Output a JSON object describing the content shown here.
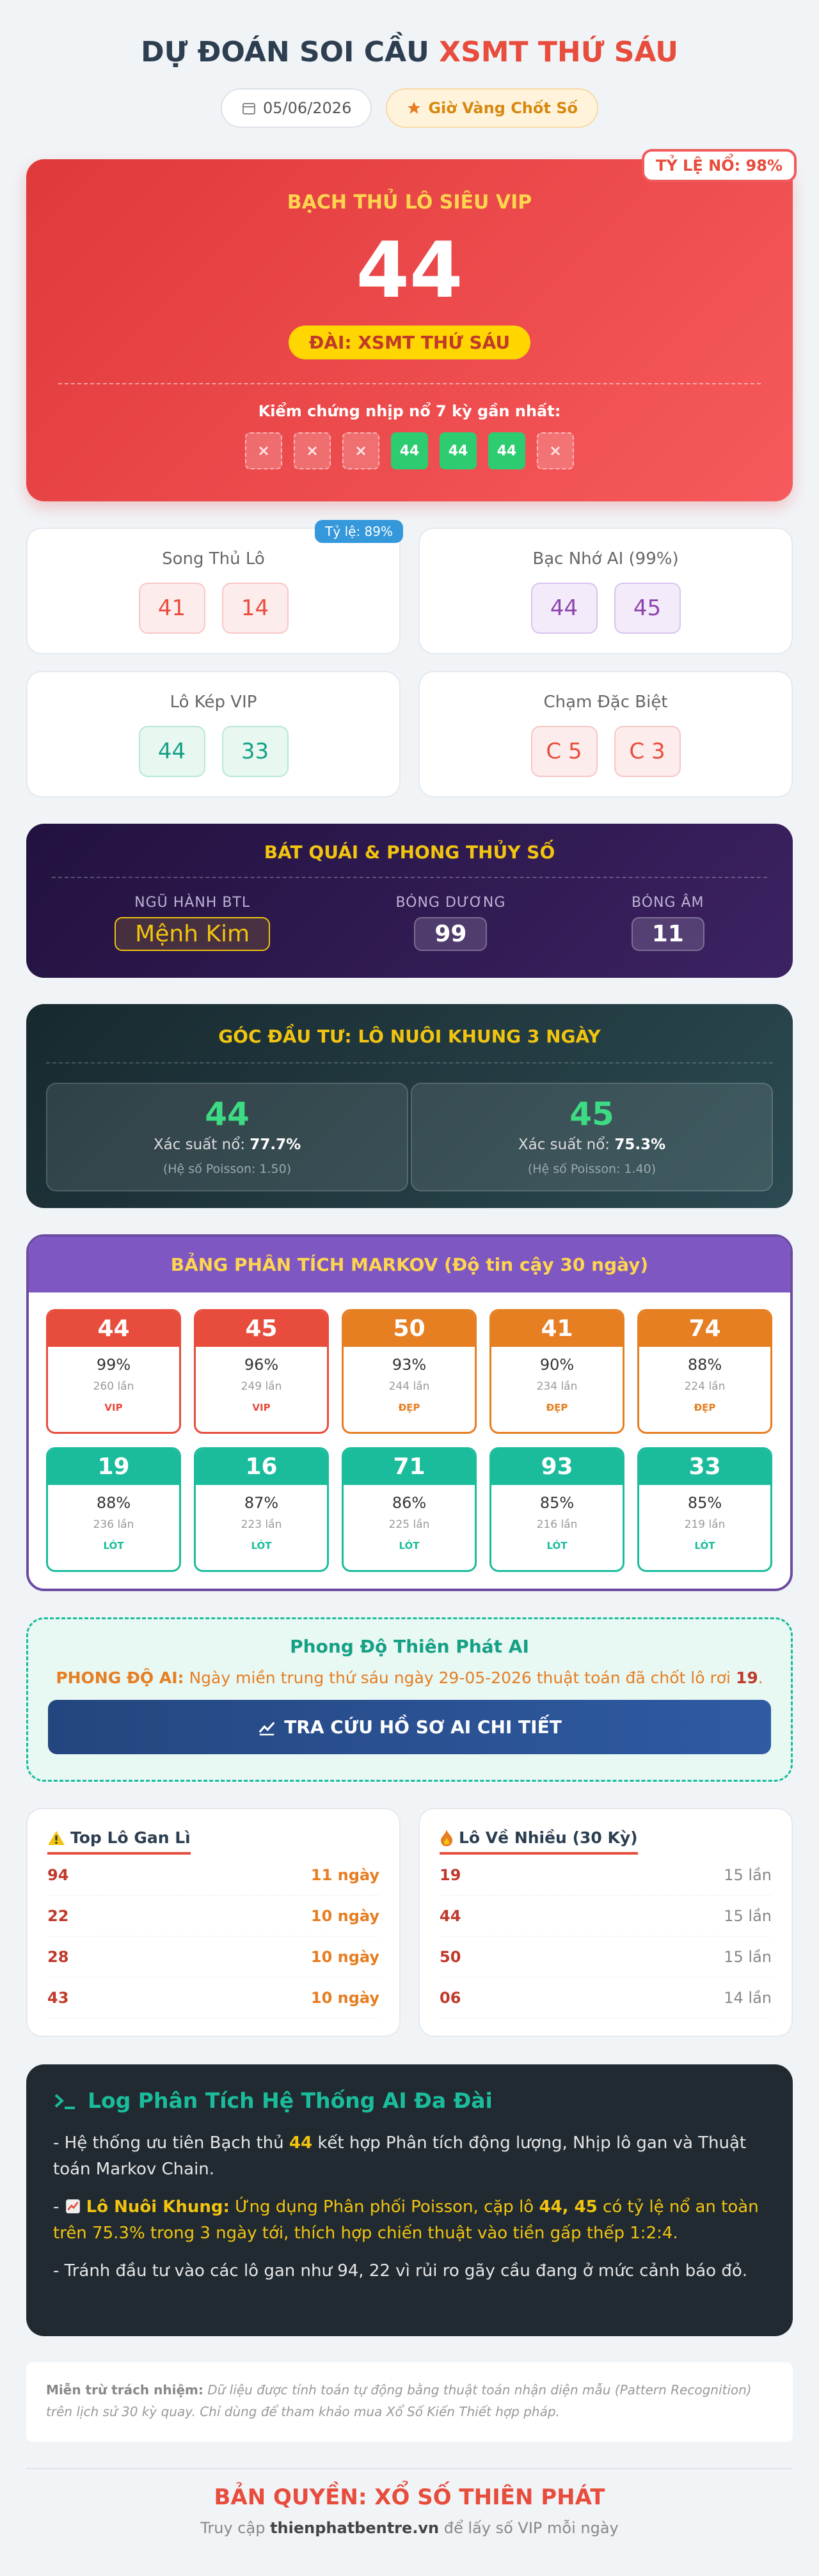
{
  "header": {
    "title_part1": "DỰ ĐOÁN SOI CẦU",
    "title_part2": "XSMT THỨ SÁU",
    "date": "05/06/2026",
    "badge": "Giờ Vàng Chốt Số"
  },
  "main_card": {
    "ribbon": "TỶ LỆ NỔ: 98%",
    "label": "BẠCH THỦ LÔ SIÊU VIP",
    "number": "44",
    "station": "ĐÀI: XSMT THỨ SÁU",
    "history_title": "Kiểm chứng nhịp nổ 7 kỳ gần nhất:",
    "history": [
      null,
      null,
      null,
      "44",
      "44",
      "44",
      null
    ]
  },
  "cards": [
    {
      "title": "Song Thủ Lô",
      "badge": "Tỷ lệ: 89%",
      "numbers": [
        "41",
        "14"
      ]
    },
    {
      "title": "Bạc Nhớ AI (99%)",
      "numbers": [
        "44",
        "45"
      ]
    },
    {
      "title": "Lô Kép VIP",
      "numbers": [
        "44",
        "33"
      ]
    },
    {
      "title": "Chạm Đặc Biệt",
      "numbers": [
        "C 5",
        "C 3"
      ]
    }
  ],
  "bat_quai": {
    "title": "BÁT QUÁI & PHONG THỦY SỐ",
    "items": [
      {
        "label": "NGŨ HÀNH BTL",
        "value": "Mệnh Kim"
      },
      {
        "label": "BÓNG DƯƠNG",
        "value": "99"
      },
      {
        "label": "BÓNG ÂM",
        "value": "11"
      }
    ]
  },
  "invest": {
    "title": "GÓC ĐẦU TƯ: LÔ NUÔI KHUNG 3 NGÀY",
    "items": [
      {
        "number": "44",
        "prob_label": "Xác suất nổ:",
        "prob": "77.7%",
        "poisson": "(Hệ số Poisson: 1.50)"
      },
      {
        "number": "45",
        "prob_label": "Xác suất nổ:",
        "prob": "75.3%",
        "poisson": "(Hệ số Poisson: 1.40)"
      }
    ]
  },
  "markov": {
    "title": "BẢNG PHÂN TÍCH MARKOV (Độ tin cậy 30 ngày)",
    "items": [
      {
        "number": "44",
        "percent": "99%",
        "count": "260 lần",
        "tag": "VIP"
      },
      {
        "number": "45",
        "percent": "96%",
        "count": "249 lần",
        "tag": "VIP"
      },
      {
        "number": "50",
        "percent": "93%",
        "count": "244 lần",
        "tag": "ĐẸP"
      },
      {
        "number": "41",
        "percent": "90%",
        "count": "234 lần",
        "tag": "ĐẸP"
      },
      {
        "number": "74",
        "percent": "88%",
        "count": "224 lần",
        "tag": "ĐẸP"
      },
      {
        "number": "19",
        "percent": "88%",
        "count": "236 lần",
        "tag": "LÓT"
      },
      {
        "number": "16",
        "percent": "87%",
        "count": "223 lần",
        "tag": "LÓT"
      },
      {
        "number": "71",
        "percent": "86%",
        "count": "225 lần",
        "tag": "LÓT"
      },
      {
        "number": "93",
        "percent": "85%",
        "count": "216 lần",
        "tag": "LÓT"
      },
      {
        "number": "33",
        "percent": "85%",
        "count": "219 lần",
        "tag": "LÓT"
      }
    ]
  },
  "performance": {
    "title": "Phong Độ Thiên Phát AI",
    "label": "PHONG ĐỘ AI:",
    "text": " Ngày miền trung thứ sáu ngày 29-05-2026 thuật toán đã chốt lô rơi ",
    "number": "19",
    "end": ".",
    "button": "TRA CỨU HỒ SƠ AI CHI TIẾT"
  },
  "lists": [
    {
      "title": "Top Lô Gan Lì",
      "rows": [
        [
          "94",
          "11 ngày"
        ],
        [
          "22",
          "10 ngày"
        ],
        [
          "28",
          "10 ngày"
        ],
        [
          "43",
          "10 ngày"
        ]
      ]
    },
    {
      "title": "Lô Về Nhiều (30 Kỳ)",
      "rows": [
        [
          "19",
          "15 lần"
        ],
        [
          "44",
          "15 lần"
        ],
        [
          "50",
          "15 lần"
        ],
        [
          "06",
          "14 lần"
        ]
      ]
    }
  ],
  "log": {
    "title": "Log Phân Tích Hệ Thống AI Đa Đài",
    "p1": [
      "- Hệ thống ưu tiên Bạch thủ ",
      "44",
      " kết hợp Phân tích động lượng, Nhịp lô gan và Thuật toán Markov Chain."
    ],
    "p2": [
      "- ",
      "Lô Nuôi Khung:",
      " Ứng dụng Phân phối Poisson, cặp lô ",
      "44, 45",
      " có tỷ lệ nổ an toàn trên 75.3% trong 3 ngày tới, thích hợp chiến thuật vào tiền gấp thếp 1:2:4."
    ],
    "p3": "- Tránh đầu tư vào các lô gan như 94, 22 vì rủi ro gãy cầu đang ở mức cảnh báo đỏ."
  },
  "disclaimer": {
    "label": "Miễn trừ trách nhiệm:",
    "text": " Dữ liệu được tính toán tự động bằng thuật toán nhận diện mẫu (Pattern Recognition) trên lịch sử 30 kỳ quay. Chỉ dùng để tham khảo mua Xổ Số Kiến Thiết hợp pháp."
  },
  "footer": {
    "title": "BẢN QUYỀN: XỔ SỐ THIÊN PHÁT",
    "pre": "Truy cập ",
    "site": "thienphatbentre.vn",
    "post": " để lấy số VIP mỗi ngày"
  }
}
